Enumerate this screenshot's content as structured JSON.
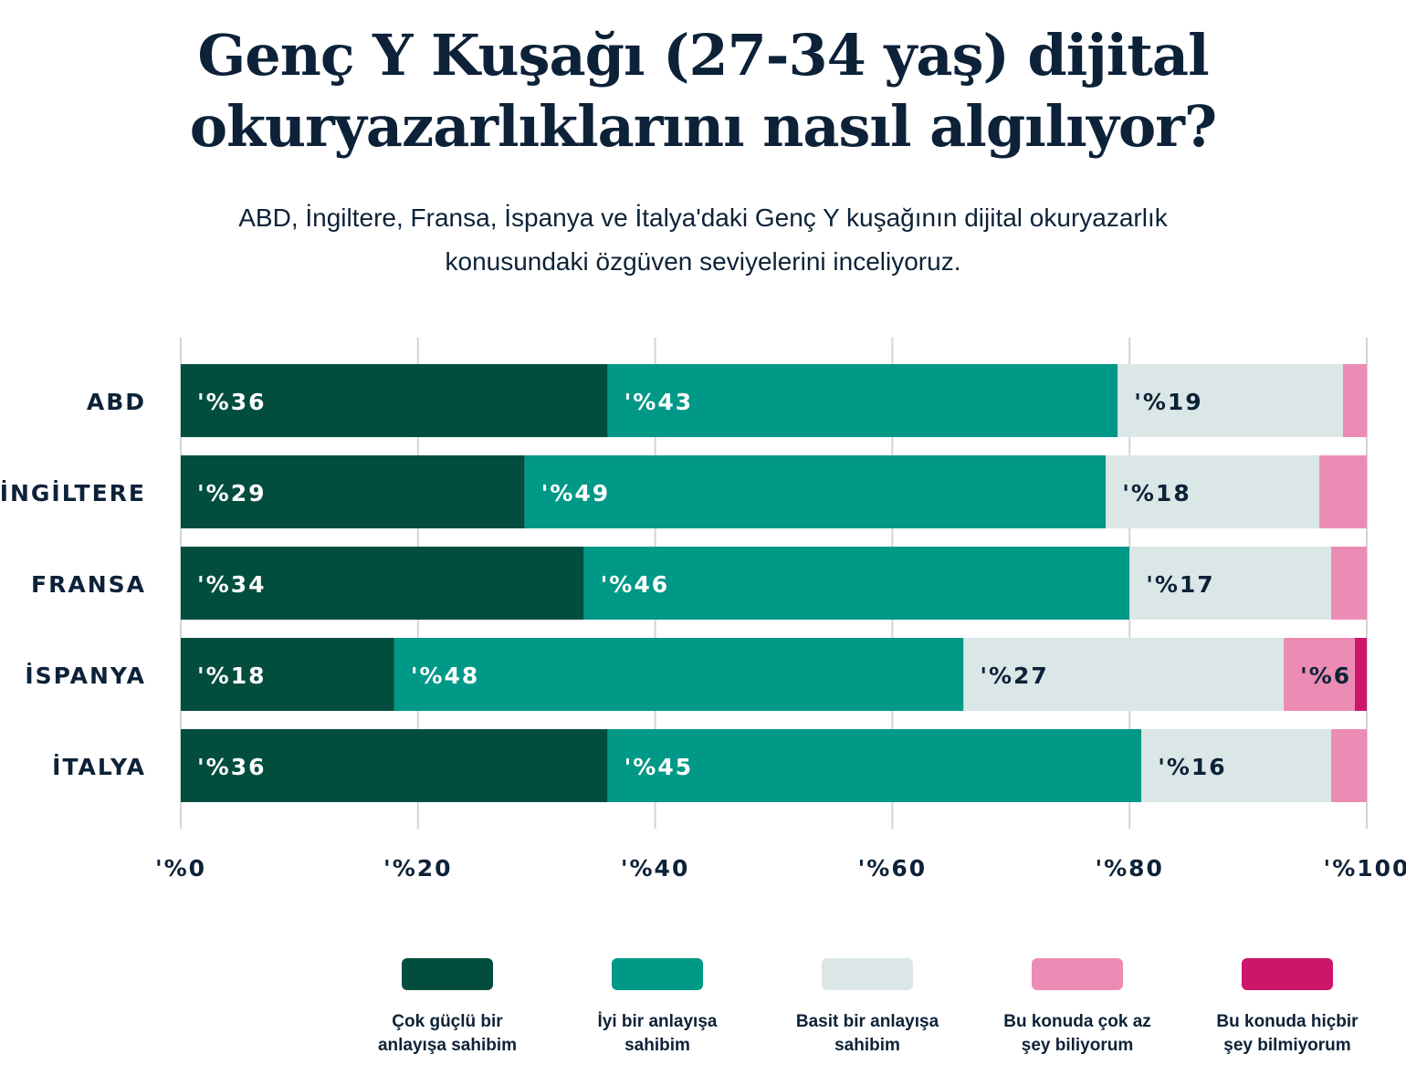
{
  "title": "Genç Y Kuşağı (27-34 yaş) dijital okuryazarlıklarını nasıl algılıyor?",
  "subtitle": "ABD, İngiltere, Fransa, İspanya ve İtalya'daki Genç Y kuşağının dijital okuryazarlık konusundaki özgüven seviyelerini inceliyoruz.",
  "chart_data": {
    "type": "bar",
    "orientation": "horizontal",
    "stacked": true,
    "categories": [
      "ABD",
      "İNGİLTERE",
      "FRANSA",
      "İSPANYA",
      "İTALYA"
    ],
    "xlim": [
      0,
      100
    ],
    "x_ticks": [
      0,
      20,
      40,
      60,
      80,
      100
    ],
    "x_tick_labels": [
      "'%0",
      "'%20",
      "'%40",
      "'%60",
      "'%80",
      "'%100"
    ],
    "grid": true,
    "legend_position": "bottom",
    "series": [
      {
        "name": "Çok güçlü bir anlayışa sahibim",
        "color": "#034d3f",
        "values": [
          36,
          29,
          34,
          18,
          36
        ],
        "labels": [
          "'%36",
          "'%29",
          "'%34",
          "'%18",
          "'%36"
        ]
      },
      {
        "name": "İyi bir anlayışa sahibim",
        "color": "#009886",
        "values": [
          43,
          49,
          46,
          48,
          45
        ],
        "labels": [
          "'%43",
          "'%49",
          "'%46",
          "'%48",
          "'%45"
        ]
      },
      {
        "name": "Basit bir anlayışa sahibim",
        "color": "#dae7e6",
        "values": [
          19,
          18,
          17,
          27,
          16
        ],
        "labels": [
          "'%19",
          "'%18",
          "'%17",
          "'%27",
          "'%16"
        ]
      },
      {
        "name": "Bu konuda çok az şey biliyorum",
        "color": "#ec8cb5",
        "values": [
          2,
          4,
          3,
          6,
          3
        ],
        "labels": [
          "",
          "",
          "",
          "'%6",
          ""
        ]
      },
      {
        "name": "Bu konuda hiçbir şey bilmiyorum",
        "color": "#cd1569",
        "values": [
          0,
          0,
          0,
          1,
          0
        ],
        "labels": [
          "",
          "",
          "",
          "",
          ""
        ]
      }
    ]
  },
  "legend": [
    {
      "line1": "Çok güçlü bir",
      "line2": "anlayışa sahibim"
    },
    {
      "line1": "İyi bir anlayışa",
      "line2": "sahibim"
    },
    {
      "line1": "Basit bir anlayışa",
      "line2": "sahibim"
    },
    {
      "line1": "Bu konuda çok az",
      "line2": "şey biliyorum"
    },
    {
      "line1": "Bu konuda hiçbir",
      "line2": "şey bilmiyorum"
    }
  ]
}
